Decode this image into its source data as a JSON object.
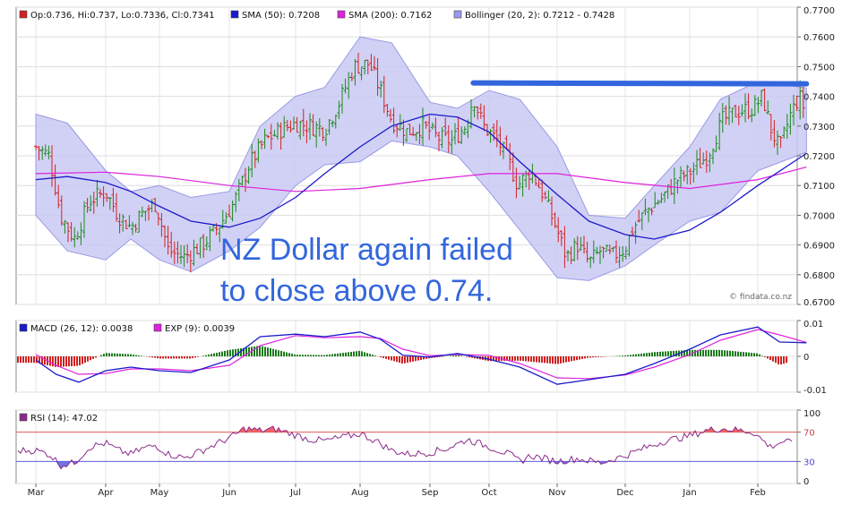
{
  "watermark": "© findata.co.nz",
  "annotation": {
    "line1": "NZ Dollar again failed",
    "line2": "to close above 0.74."
  },
  "chart_data": [
    {
      "type": "ohlc",
      "panel": "price",
      "legend": [
        {
          "label": "Op:0.736, Hi:0.737, Lo:0.7336, Cl:0.7341",
          "color": "#d42020"
        },
        {
          "label": "SMA (50): 0.7208",
          "color": "#1a1acc"
        },
        {
          "label": "SMA (200): 0.7162",
          "color": "#dd22dd"
        },
        {
          "label": "Bollinger (20, 2): 0.7212 - 0.7428",
          "color": "#9999ee"
        }
      ],
      "ylim": [
        0.67,
        0.77
      ],
      "yticks": [
        "0.7700",
        "0.7600",
        "0.7500",
        "0.7400",
        "0.7300",
        "0.7200",
        "0.7100",
        "0.7000",
        "0.6900",
        "0.6800",
        "0.6700"
      ],
      "close_path": [
        [
          "Mar-01",
          0.723
        ],
        [
          "Mar-07",
          0.72
        ],
        [
          "Mar-12",
          0.7
        ],
        [
          "Mar-18",
          0.692
        ],
        [
          "Mar-25",
          0.705
        ],
        [
          "Apr-01",
          0.708
        ],
        [
          "Apr-08",
          0.7
        ],
        [
          "Apr-15",
          0.696
        ],
        [
          "Apr-22",
          0.701
        ],
        [
          "Apr-29",
          0.704
        ],
        [
          "May-05",
          0.688
        ],
        [
          "May-12",
          0.686
        ],
        [
          "May-20",
          0.69
        ],
        [
          "May-27",
          0.696
        ],
        [
          "Jun-03",
          0.704
        ],
        [
          "Jun-10",
          0.717
        ],
        [
          "Jun-17",
          0.725
        ],
        [
          "Jun-25",
          0.729
        ],
        [
          "Jul-01",
          0.731
        ],
        [
          "Jul-08",
          0.73
        ],
        [
          "Jul-15",
          0.729
        ],
        [
          "Jul-22",
          0.738
        ],
        [
          "Jul-29",
          0.75
        ],
        [
          "Aug-05",
          0.751
        ],
        [
          "Aug-10",
          0.742
        ],
        [
          "Aug-15",
          0.732
        ],
        [
          "Aug-22",
          0.728
        ],
        [
          "Aug-29",
          0.73
        ],
        [
          "Sep-05",
          0.726
        ],
        [
          "Sep-12",
          0.725
        ],
        [
          "Sep-19",
          0.73
        ],
        [
          "Sep-23",
          0.74
        ],
        [
          "Sep-28",
          0.73
        ],
        [
          "Oct-05",
          0.725
        ],
        [
          "Oct-10",
          0.718
        ],
        [
          "Oct-14",
          0.71
        ],
        [
          "Oct-20",
          0.715
        ],
        [
          "Oct-25",
          0.708
        ],
        [
          "Nov-01",
          0.695
        ],
        [
          "Nov-05",
          0.686
        ],
        [
          "Nov-10",
          0.69
        ],
        [
          "Nov-15",
          0.684
        ],
        [
          "Nov-20",
          0.688
        ],
        [
          "Nov-25",
          0.686
        ],
        [
          "Dec-01",
          0.689
        ],
        [
          "Dec-05",
          0.696
        ],
        [
          "Dec-12",
          0.702
        ],
        [
          "Dec-19",
          0.706
        ],
        [
          "Dec-26",
          0.712
        ],
        [
          "Jan-02",
          0.715
        ],
        [
          "Jan-09",
          0.72
        ],
        [
          "Jan-16",
          0.732
        ],
        [
          "Jan-23",
          0.735
        ],
        [
          "Jan-30",
          0.736
        ],
        [
          "Feb-03",
          0.74
        ],
        [
          "Feb-06",
          0.73
        ],
        [
          "Feb-10",
          0.722
        ],
        [
          "Feb-14",
          0.733
        ],
        [
          "Feb-18",
          0.74
        ],
        [
          "Feb-21",
          0.7341
        ]
      ],
      "sma50": [
        [
          "Mar-01",
          0.712
        ],
        [
          "Mar-15",
          0.713
        ],
        [
          "Apr-01",
          0.711
        ],
        [
          "Apr-15",
          0.708
        ],
        [
          "May-01",
          0.703
        ],
        [
          "May-15",
          0.698
        ],
        [
          "Jun-01",
          0.696
        ],
        [
          "Jun-15",
          0.699
        ],
        [
          "Jul-01",
          0.706
        ],
        [
          "Jul-15",
          0.714
        ],
        [
          "Aug-01",
          0.723
        ],
        [
          "Aug-15",
          0.73
        ],
        [
          "Sep-01",
          0.734
        ],
        [
          "Sep-15",
          0.733
        ],
        [
          "Oct-01",
          0.728
        ],
        [
          "Oct-15",
          0.718
        ],
        [
          "Nov-01",
          0.707
        ],
        [
          "Nov-15",
          0.698
        ],
        [
          "Dec-01",
          0.6935
        ],
        [
          "Dec-15",
          0.692
        ],
        [
          "Jan-01",
          0.695
        ],
        [
          "Jan-15",
          0.701
        ],
        [
          "Feb-01",
          0.71
        ],
        [
          "Feb-21",
          0.7208
        ]
      ],
      "sma200": [
        [
          "Mar-01",
          0.714
        ],
        [
          "Apr-01",
          0.7145
        ],
        [
          "May-01",
          0.713
        ],
        [
          "Jun-01",
          0.71
        ],
        [
          "Jul-01",
          0.708
        ],
        [
          "Aug-01",
          0.709
        ],
        [
          "Sep-01",
          0.712
        ],
        [
          "Oct-01",
          0.714
        ],
        [
          "Nov-01",
          0.714
        ],
        [
          "Dec-01",
          0.711
        ],
        [
          "Jan-01",
          0.709
        ],
        [
          "Feb-01",
          0.712
        ],
        [
          "Feb-21",
          0.7162
        ]
      ],
      "bollinger_upper": [
        [
          "Mar-01",
          0.734
        ],
        [
          "Mar-15",
          0.731
        ],
        [
          "Apr-01",
          0.715
        ],
        [
          "Apr-15",
          0.708
        ],
        [
          "May-01",
          0.71
        ],
        [
          "May-15",
          0.706
        ],
        [
          "Jun-01",
          0.708
        ],
        [
          "Jun-15",
          0.73
        ],
        [
          "Jul-01",
          0.74
        ],
        [
          "Jul-15",
          0.743
        ],
        [
          "Aug-01",
          0.76
        ],
        [
          "Aug-15",
          0.758
        ],
        [
          "Sep-01",
          0.738
        ],
        [
          "Sep-15",
          0.736
        ],
        [
          "Oct-01",
          0.742
        ],
        [
          "Oct-15",
          0.739
        ],
        [
          "Nov-01",
          0.723
        ],
        [
          "Nov-15",
          0.7
        ],
        [
          "Dec-01",
          0.699
        ],
        [
          "Dec-15",
          0.71
        ],
        [
          "Jan-01",
          0.723
        ],
        [
          "Jan-15",
          0.739
        ],
        [
          "Feb-01",
          0.745
        ],
        [
          "Feb-21",
          0.7428
        ]
      ],
      "bollinger_lower": [
        [
          "Mar-01",
          0.7
        ],
        [
          "Mar-15",
          0.688
        ],
        [
          "Apr-01",
          0.685
        ],
        [
          "Apr-15",
          0.692
        ],
        [
          "May-01",
          0.685
        ],
        [
          "May-15",
          0.681
        ],
        [
          "Jun-01",
          0.688
        ],
        [
          "Jun-15",
          0.696
        ],
        [
          "Jul-01",
          0.71
        ],
        [
          "Jul-15",
          0.717
        ],
        [
          "Aug-01",
          0.718
        ],
        [
          "Aug-15",
          0.725
        ],
        [
          "Sep-01",
          0.723
        ],
        [
          "Sep-15",
          0.72
        ],
        [
          "Oct-01",
          0.708
        ],
        [
          "Oct-15",
          0.695
        ],
        [
          "Nov-01",
          0.679
        ],
        [
          "Nov-15",
          0.678
        ],
        [
          "Dec-01",
          0.683
        ],
        [
          "Dec-15",
          0.69
        ],
        [
          "Jan-01",
          0.698
        ],
        [
          "Jan-15",
          0.701
        ],
        [
          "Feb-01",
          0.715
        ],
        [
          "Feb-21",
          0.7212
        ]
      ],
      "resistance": {
        "from": "Sep-23",
        "to": "Feb-21",
        "value": 0.7445,
        "color": "#3366dd"
      }
    },
    {
      "type": "line",
      "panel": "macd",
      "legend": [
        {
          "label": "MACD (26, 12): 0.0038",
          "color": "#1a1acc"
        },
        {
          "label": "EXP (9): 0.0039",
          "color": "#dd22dd"
        }
      ],
      "ylim": [
        -0.01,
        0.01
      ],
      "yticks": [
        "0.01",
        "0",
        "-0.01"
      ],
      "macd": [
        [
          "Mar-01",
          -0.001
        ],
        [
          "Mar-10",
          -0.005
        ],
        [
          "Mar-20",
          -0.0072
        ],
        [
          "Apr-01",
          -0.004
        ],
        [
          "Apr-15",
          -0.003
        ],
        [
          "May-01",
          -0.004
        ],
        [
          "May-15",
          -0.0045
        ],
        [
          "Jun-01",
          -0.001
        ],
        [
          "Jun-15",
          0.0055
        ],
        [
          "Jul-01",
          0.0062
        ],
        [
          "Jul-15",
          0.0055
        ],
        [
          "Aug-01",
          0.0068
        ],
        [
          "Aug-10",
          0.0048
        ],
        [
          "Aug-20",
          0.0003
        ],
        [
          "Sep-01",
          -0.0002
        ],
        [
          "Sep-15",
          0.0008
        ],
        [
          "Oct-01",
          -0.0008
        ],
        [
          "Oct-15",
          -0.003
        ],
        [
          "Nov-01",
          -0.0078
        ],
        [
          "Nov-15",
          -0.0065
        ],
        [
          "Dec-01",
          -0.005
        ],
        [
          "Dec-15",
          -0.002
        ],
        [
          "Jan-01",
          0.002
        ],
        [
          "Jan-15",
          0.006
        ],
        [
          "Feb-01",
          0.0082
        ],
        [
          "Feb-10",
          0.004
        ],
        [
          "Feb-21",
          0.0038
        ]
      ],
      "signal": [
        [
          "Mar-01",
          0.0005
        ],
        [
          "Mar-10",
          -0.0025
        ],
        [
          "Mar-20",
          -0.005
        ],
        [
          "Apr-01",
          -0.0048
        ],
        [
          "Apr-15",
          -0.0035
        ],
        [
          "May-01",
          -0.0035
        ],
        [
          "May-15",
          -0.004
        ],
        [
          "Jun-01",
          -0.0025
        ],
        [
          "Jun-15",
          0.003
        ],
        [
          "Jul-01",
          0.0058
        ],
        [
          "Jul-15",
          0.0052
        ],
        [
          "Aug-01",
          0.0055
        ],
        [
          "Aug-10",
          0.005
        ],
        [
          "Aug-20",
          0.002
        ],
        [
          "Sep-01",
          0.0002
        ],
        [
          "Sep-15",
          0.0005
        ],
        [
          "Oct-01",
          0.0003
        ],
        [
          "Oct-15",
          -0.002
        ],
        [
          "Nov-01",
          -0.006
        ],
        [
          "Nov-15",
          -0.0062
        ],
        [
          "Dec-01",
          -0.0052
        ],
        [
          "Dec-15",
          -0.003
        ],
        [
          "Jan-01",
          0.0005
        ],
        [
          "Jan-15",
          0.0045
        ],
        [
          "Feb-01",
          0.0075
        ],
        [
          "Feb-10",
          0.006
        ],
        [
          "Feb-21",
          0.0039
        ]
      ]
    },
    {
      "type": "line",
      "panel": "rsi",
      "legend": [
        {
          "label": "RSI (14): 47.02",
          "color": "#8b2b8b"
        }
      ],
      "ylim": [
        0,
        100
      ],
      "yticks": [
        "100",
        "70",
        "30",
        "0"
      ],
      "levels": [
        70,
        30
      ],
      "rsi": [
        [
          "Mar-01",
          45
        ],
        [
          "Mar-07",
          40
        ],
        [
          "Mar-12",
          25
        ],
        [
          "Mar-18",
          28
        ],
        [
          "Mar-25",
          50
        ],
        [
          "Apr-01",
          55
        ],
        [
          "Apr-08",
          45
        ],
        [
          "Apr-15",
          40
        ],
        [
          "Apr-22",
          48
        ],
        [
          "Apr-29",
          52
        ],
        [
          "May-05",
          40
        ],
        [
          "May-12",
          35
        ],
        [
          "May-20",
          45
        ],
        [
          "May-27",
          55
        ],
        [
          "Jun-03",
          65
        ],
        [
          "Jun-08",
          75
        ],
        [
          "Jun-15",
          72
        ],
        [
          "Jun-22",
          74
        ],
        [
          "Jul-01",
          66
        ],
        [
          "Jul-08",
          60
        ],
        [
          "Jul-15",
          58
        ],
        [
          "Jul-22",
          62
        ],
        [
          "Aug-01",
          68
        ],
        [
          "Aug-08",
          58
        ],
        [
          "Aug-15",
          45
        ],
        [
          "Aug-22",
          40
        ],
        [
          "Sep-01",
          42
        ],
        [
          "Sep-10",
          48
        ],
        [
          "Sep-20",
          60
        ],
        [
          "Oct-01",
          50
        ],
        [
          "Oct-10",
          40
        ],
        [
          "Oct-15",
          30
        ],
        [
          "Oct-20",
          38
        ],
        [
          "Nov-01",
          30
        ],
        [
          "Nov-10",
          34
        ],
        [
          "Nov-20",
          28
        ],
        [
          "Dec-01",
          38
        ],
        [
          "Dec-10",
          48
        ],
        [
          "Dec-20",
          58
        ],
        [
          "Jan-01",
          65
        ],
        [
          "Jan-08",
          72
        ],
        [
          "Jan-15",
          75
        ],
        [
          "Jan-22",
          73
        ],
        [
          "Jan-30",
          70
        ],
        [
          "Feb-06",
          50
        ],
        [
          "Feb-12",
          58
        ],
        [
          "Feb-21",
          47
        ]
      ]
    }
  ],
  "x_axis": [
    "Mar",
    "Apr",
    "May",
    "Jun",
    "Jul",
    "Aug",
    "Sep",
    "Oct",
    "Nov",
    "Dec",
    "Jan",
    "Feb"
  ]
}
